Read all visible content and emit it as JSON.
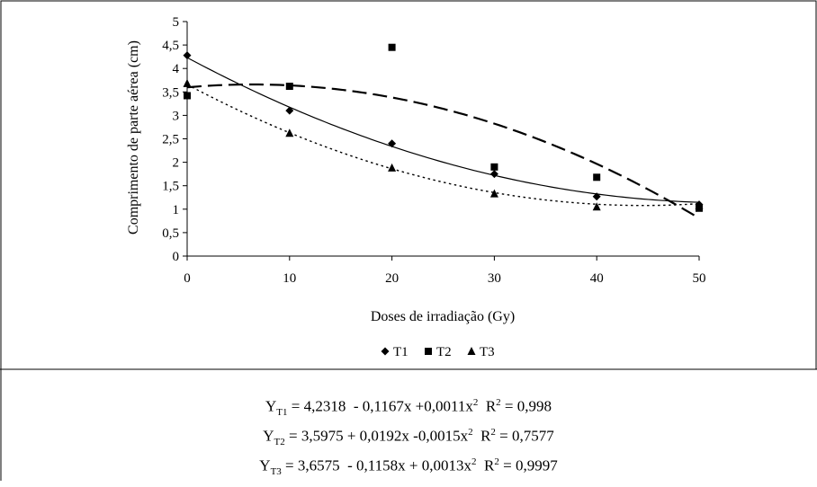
{
  "chart_data": {
    "type": "scatter",
    "xlabel": "Doses de irradiação (Gy)",
    "ylabel": "Comprimento de parte aérea (cm)",
    "xlim": [
      0,
      50
    ],
    "ylim": [
      0,
      5
    ],
    "x_ticks": [
      "0",
      "10",
      "20",
      "30",
      "40",
      "50"
    ],
    "y_ticks": [
      "0",
      "0,5",
      "1",
      "1,5",
      "2",
      "2,5",
      "3",
      "3,5",
      "4",
      "4,5",
      "5"
    ],
    "grid": false,
    "legend_position": "bottom",
    "series": [
      {
        "name": "T1",
        "marker": "diamond",
        "trend_style": "solid",
        "x": [
          0,
          10,
          20,
          30,
          40,
          50
        ],
        "y": [
          4.28,
          3.1,
          2.4,
          1.75,
          1.27,
          1.1
        ],
        "trend": {
          "a": 4.2318,
          "b": -0.1167,
          "c": 0.0011
        }
      },
      {
        "name": "T2",
        "marker": "square",
        "trend_style": "long-dash",
        "x": [
          0,
          10,
          20,
          30,
          40,
          50
        ],
        "y": [
          3.42,
          3.62,
          4.45,
          1.9,
          1.68,
          1.02
        ],
        "trend": {
          "a": 3.5975,
          "b": 0.0192,
          "c": -0.0015
        }
      },
      {
        "name": "T3",
        "marker": "triangle",
        "trend_style": "dotted",
        "x": [
          0,
          10,
          20,
          30,
          40,
          50
        ],
        "y": [
          3.68,
          2.62,
          1.88,
          1.33,
          1.05,
          1.08
        ],
        "trend": {
          "a": 3.6575,
          "b": -0.1158,
          "c": 0.0013
        }
      }
    ]
  },
  "equations": [
    {
      "y": "Y",
      "sub": "T1",
      "lead": " = 4,2318  - 0,1167x +0,0011x",
      "sup": "2",
      "r": "  R",
      "rsup": "2",
      "rval": " = 0,998"
    },
    {
      "y": "Y",
      "sub": "T2",
      "lead": " = 3,5975 + 0,0192x -0,0015x",
      "sup": "2",
      "r": "  R",
      "rsup": "2",
      "rval": " = 0,7577"
    },
    {
      "y": "Y",
      "sub": "T3",
      "lead": " = 3,6575  - 0,1158x + 0,0013x",
      "sup": "2",
      "r": "  R",
      "rsup": "2",
      "rval": " = 0,9997"
    }
  ]
}
